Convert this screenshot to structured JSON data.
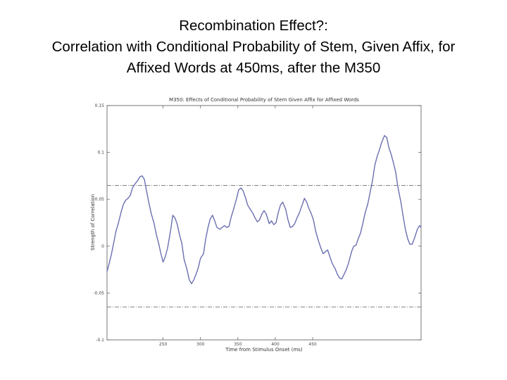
{
  "slide": {
    "title_line1": "Recombination Effect?:",
    "title_line2": "Correlation with Conditional Probability of Stem, Given Affix, for",
    "title_line3": "Affixed Words at 450ms, after the M350"
  },
  "chart_data": {
    "type": "line",
    "title": "M350: Effects of Conditional Probability of Stem Given Affix for Affixed Words",
    "xlabel": "Time from Stimulus Onset (ms)",
    "ylabel": "Strength of Correlation",
    "xlim": [
      175,
      595
    ],
    "ylim": [
      -0.1,
      0.15
    ],
    "xticks": [
      250,
      300,
      350,
      400,
      450
    ],
    "xtick_labels": [
      "250",
      "300",
      "350",
      "400",
      "450"
    ],
    "yticks": [
      -0.1,
      -0.05,
      0,
      0.05,
      0.1,
      0.15
    ],
    "ytick_labels": [
      "-0.1",
      "-0.05",
      "0",
      "0.05",
      "0.1",
      "0.15"
    ],
    "thresholds": [
      0.0648,
      -0.0648
    ],
    "grid": false,
    "series": [
      {
        "color": "#6a6fb0",
        "x": [
          175,
          178,
          181,
          184,
          187,
          190,
          194,
          197,
          200,
          203,
          206,
          209,
          212,
          216,
          219,
          222,
          225,
          228,
          231,
          234,
          238,
          241,
          244,
          247,
          250,
          253,
          256,
          260,
          263,
          266,
          269,
          272,
          275,
          278,
          282,
          285,
          288,
          291,
          294,
          297,
          300,
          304,
          307,
          310,
          313,
          316,
          319,
          322,
          326,
          329,
          332,
          335,
          338,
          341,
          344,
          348,
          351,
          354,
          357,
          360,
          363,
          366,
          370,
          373,
          376,
          379,
          382,
          385,
          388,
          392,
          395,
          398,
          401,
          404,
          407,
          410,
          414,
          417,
          420,
          423,
          426,
          429,
          432,
          436,
          439,
          442,
          445,
          448,
          451,
          454,
          458,
          461,
          464,
          467,
          470,
          473,
          476,
          480,
          483,
          486,
          489,
          492,
          495,
          498,
          502,
          505,
          508,
          511,
          514,
          517,
          520,
          524,
          527,
          530,
          533,
          536,
          539,
          542,
          546,
          549,
          552,
          555,
          558,
          561,
          564,
          568,
          571,
          574,
          577,
          580,
          583,
          586,
          590,
          593,
          595
        ],
        "y": [
          -0.027,
          -0.018,
          -0.008,
          0.004,
          0.016,
          0.024,
          0.037,
          0.045,
          0.049,
          0.051,
          0.054,
          0.062,
          0.066,
          0.07,
          0.074,
          0.075,
          0.071,
          0.058,
          0.046,
          0.035,
          0.024,
          0.012,
          0.003,
          -0.008,
          -0.017,
          -0.011,
          -0.002,
          0.017,
          0.033,
          0.03,
          0.023,
          0.012,
          0.003,
          -0.014,
          -0.025,
          -0.036,
          -0.04,
          -0.036,
          -0.03,
          -0.023,
          -0.013,
          -0.008,
          0.008,
          0.02,
          0.029,
          0.033,
          0.027,
          0.02,
          0.018,
          0.02,
          0.022,
          0.02,
          0.021,
          0.031,
          0.039,
          0.05,
          0.06,
          0.062,
          0.059,
          0.052,
          0.044,
          0.04,
          0.035,
          0.03,
          0.026,
          0.028,
          0.034,
          0.038,
          0.034,
          0.024,
          0.027,
          0.023,
          0.025,
          0.036,
          0.044,
          0.047,
          0.039,
          0.028,
          0.02,
          0.021,
          0.024,
          0.03,
          0.035,
          0.044,
          0.051,
          0.047,
          0.04,
          0.035,
          0.028,
          0.016,
          0.005,
          -0.002,
          -0.008,
          -0.006,
          -0.004,
          -0.011,
          -0.018,
          -0.024,
          -0.03,
          -0.034,
          -0.035,
          -0.03,
          -0.025,
          -0.018,
          -0.006,
          0.0,
          0.001,
          0.008,
          0.014,
          0.024,
          0.035,
          0.046,
          0.058,
          0.07,
          0.086,
          0.095,
          0.102,
          0.11,
          0.118,
          0.116,
          0.105,
          0.098,
          0.089,
          0.079,
          0.063,
          0.047,
          0.032,
          0.018,
          0.008,
          0.002,
          0.002,
          0.008,
          0.018,
          0.022,
          0.02
        ]
      }
    ]
  }
}
